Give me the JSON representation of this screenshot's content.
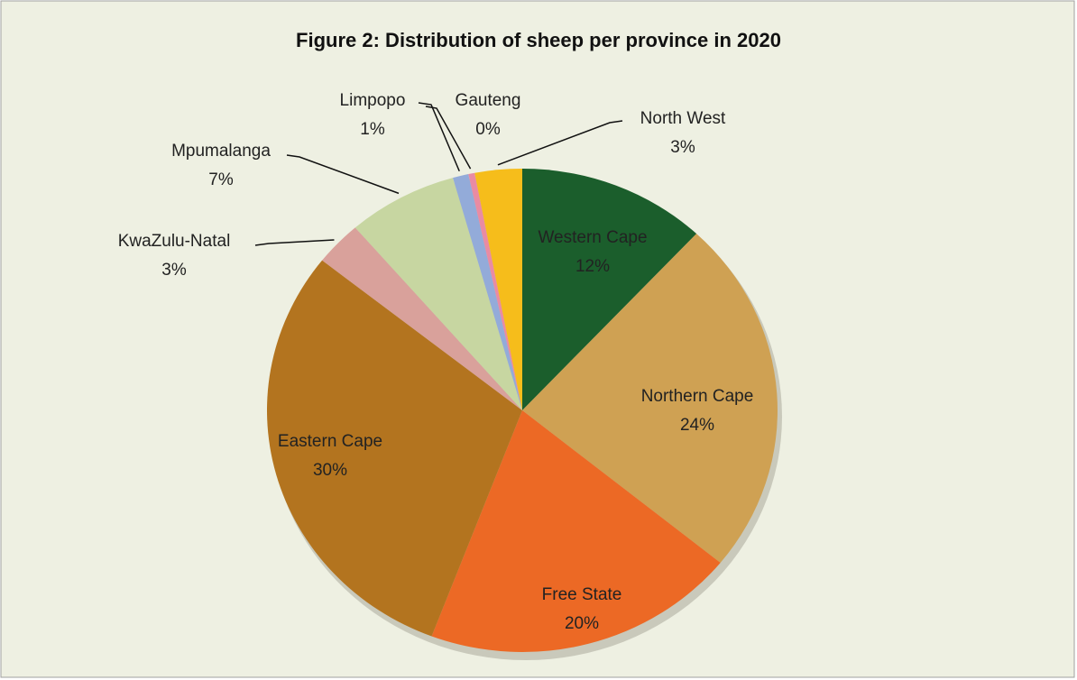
{
  "chart_data": {
    "type": "pie",
    "title": "Figure 2: Distribution of sheep per province in 2020",
    "categories": [
      "Western Cape",
      "Northern Cape",
      "Free State",
      "Eastern Cape",
      "KwaZulu-Natal",
      "Mpumalanga",
      "Limpopo",
      "Gauteng",
      "North West"
    ],
    "values": [
      12,
      24,
      20,
      30,
      3,
      7,
      1,
      0.4,
      3
    ],
    "value_labels": [
      "12%",
      "24%",
      "20%",
      "30%",
      "3%",
      "7%",
      "1%",
      "0%",
      "3%"
    ],
    "colors": [
      "#1b5e2c",
      "#cfa153",
      "#ec6925",
      "#b3741f",
      "#d9a19b",
      "#c7d6a1",
      "#93abd9",
      "#e98ba3",
      "#f6bd1b"
    ]
  }
}
